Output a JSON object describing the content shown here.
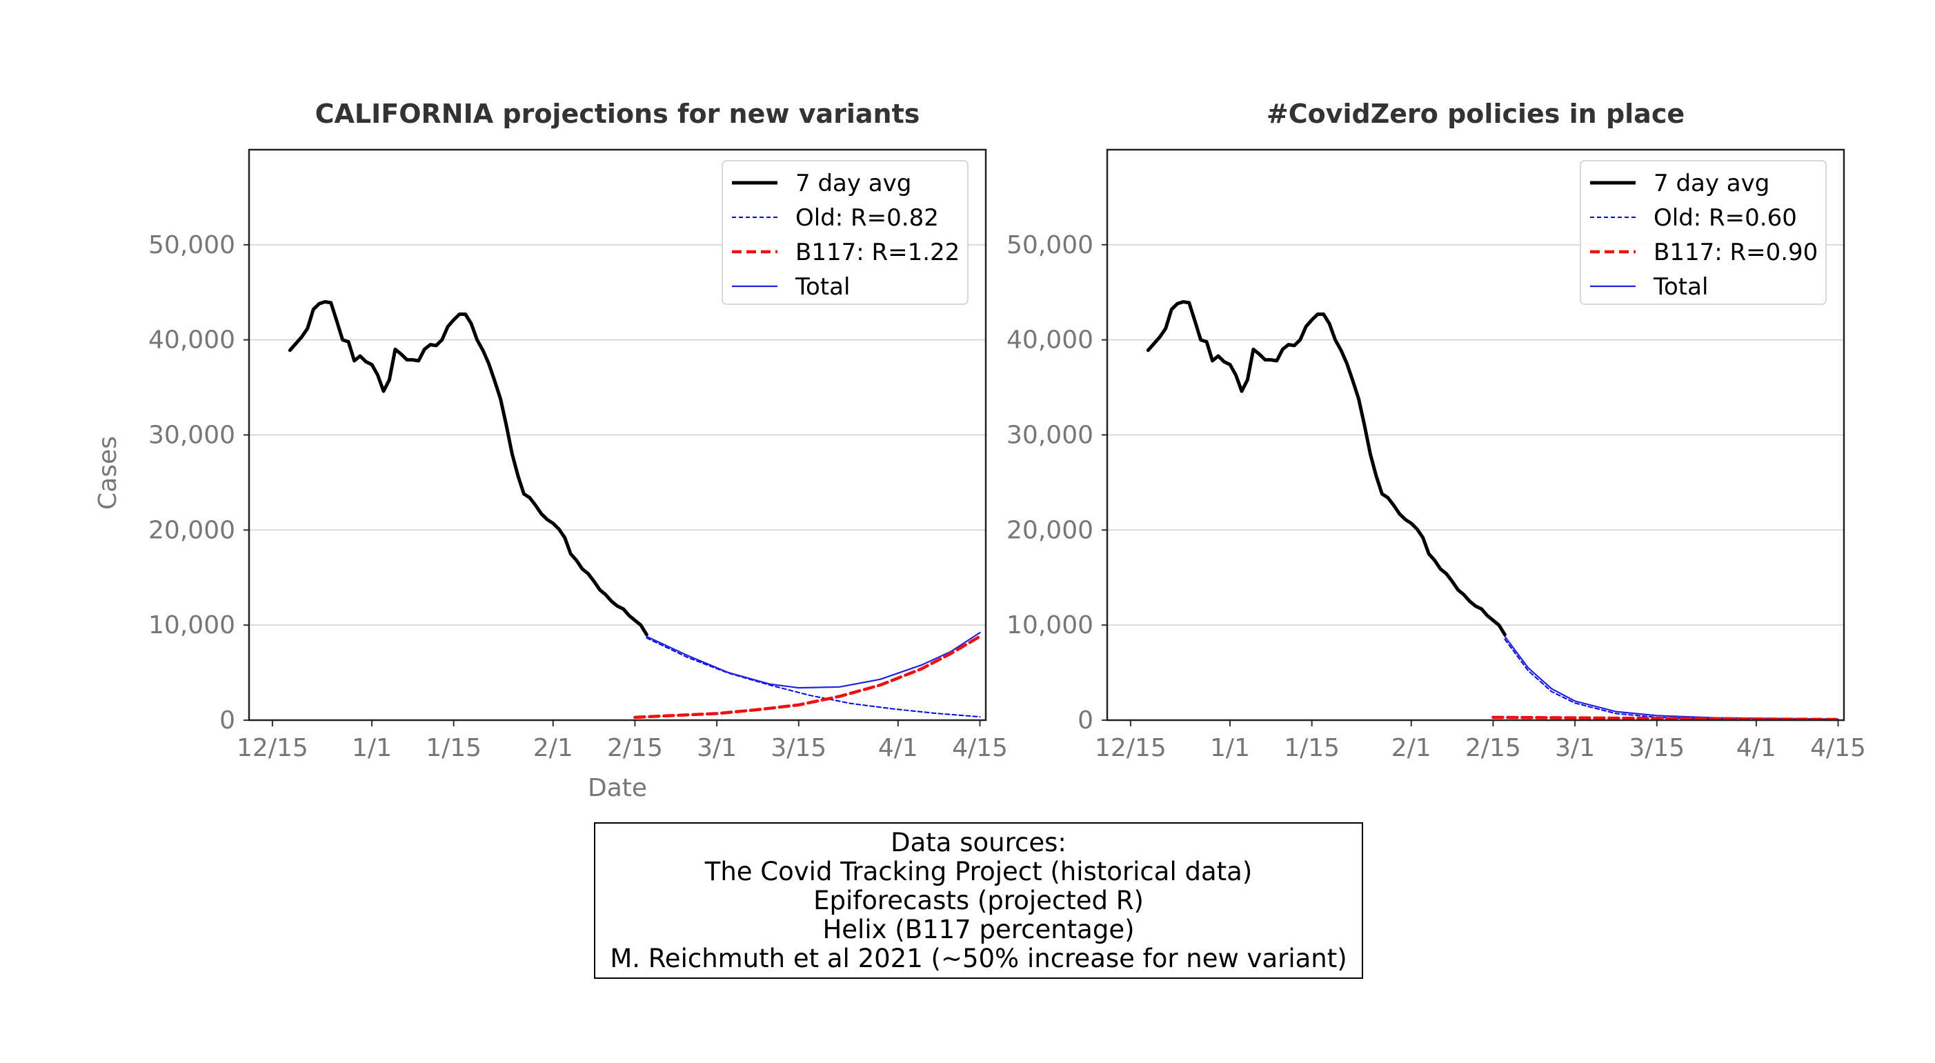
{
  "sources": {
    "lines": [
      "Data sources:",
      "The Covid Tracking Project (historical data)",
      "Epiforecasts (projected R)",
      "Helix (B117 percentage)",
      "M. Reichmuth et al 2021 (~50% increase for new variant)"
    ]
  },
  "chart_data": [
    {
      "type": "line",
      "title": "CALIFORNIA projections for new variants",
      "xlabel": "Date",
      "ylabel": "Cases",
      "x_unit": "date (2020-12 to 2021-04)",
      "xlim": [
        "2020-12-11",
        "2021-04-16"
      ],
      "ylim": [
        0,
        60000
      ],
      "xticks": [
        {
          "date": "2020-12-15",
          "label": "12/15"
        },
        {
          "date": "2021-01-01",
          "label": "1/1"
        },
        {
          "date": "2021-01-15",
          "label": "1/15"
        },
        {
          "date": "2021-02-01",
          "label": "2/1"
        },
        {
          "date": "2021-02-15",
          "label": "2/15"
        },
        {
          "date": "2021-03-01",
          "label": "3/1"
        },
        {
          "date": "2021-03-15",
          "label": "3/15"
        },
        {
          "date": "2021-04-01",
          "label": "4/1"
        },
        {
          "date": "2021-04-15",
          "label": "4/15"
        }
      ],
      "yticks": [
        {
          "value": 0,
          "label": "0"
        },
        {
          "value": 10000,
          "label": "10,000"
        },
        {
          "value": 20000,
          "label": "20,000"
        },
        {
          "value": 30000,
          "label": "30,000"
        },
        {
          "value": 40000,
          "label": "40,000"
        },
        {
          "value": 50000,
          "label": "50,000"
        }
      ],
      "grid": "horizontal",
      "legend_position": "top-right",
      "colors": {
        "avg": "#000000",
        "old": "#0000ee",
        "b117": "#ee1111",
        "total": "#2222dd"
      },
      "series": [
        {
          "name": "7 day avg",
          "style": "solid-thick",
          "color": "#000000",
          "points": [
            [
              "2020-12-18",
              38900
            ],
            [
              "2020-12-19",
              39600
            ],
            [
              "2020-12-20",
              40300
            ],
            [
              "2020-12-21",
              41200
            ],
            [
              "2020-12-22",
              43200
            ],
            [
              "2020-12-23",
              43800
            ],
            [
              "2020-12-24",
              44000
            ],
            [
              "2020-12-25",
              43900
            ],
            [
              "2020-12-26",
              42000
            ],
            [
              "2020-12-27",
              40000
            ],
            [
              "2020-12-28",
              39800
            ],
            [
              "2020-12-29",
              37800
            ],
            [
              "2020-12-30",
              38300
            ],
            [
              "2020-12-31",
              37700
            ],
            [
              "2021-01-01",
              37400
            ],
            [
              "2021-01-02",
              36300
            ],
            [
              "2021-01-03",
              34600
            ],
            [
              "2021-01-04",
              35800
            ],
            [
              "2021-01-05",
              39000
            ],
            [
              "2021-01-06",
              38500
            ],
            [
              "2021-01-07",
              37900
            ],
            [
              "2021-01-08",
              37900
            ],
            [
              "2021-01-09",
              37800
            ],
            [
              "2021-01-10",
              39000
            ],
            [
              "2021-01-11",
              39500
            ],
            [
              "2021-01-12",
              39400
            ],
            [
              "2021-01-13",
              40000
            ],
            [
              "2021-01-14",
              41400
            ],
            [
              "2021-01-15",
              42100
            ],
            [
              "2021-01-16",
              42700
            ],
            [
              "2021-01-17",
              42700
            ],
            [
              "2021-01-18",
              41700
            ],
            [
              "2021-01-19",
              40000
            ],
            [
              "2021-01-20",
              38900
            ],
            [
              "2021-01-21",
              37500
            ],
            [
              "2021-01-22",
              35700
            ],
            [
              "2021-01-23",
              33800
            ],
            [
              "2021-01-24",
              31000
            ],
            [
              "2021-01-25",
              28000
            ],
            [
              "2021-01-26",
              25700
            ],
            [
              "2021-01-27",
              23800
            ],
            [
              "2021-01-28",
              23400
            ],
            [
              "2021-01-29",
              22600
            ],
            [
              "2021-01-30",
              21700
            ],
            [
              "2021-01-31",
              21100
            ],
            [
              "2021-02-01",
              20700
            ],
            [
              "2021-02-02",
              20100
            ],
            [
              "2021-02-03",
              19200
            ],
            [
              "2021-02-04",
              17500
            ],
            [
              "2021-02-05",
              16800
            ],
            [
              "2021-02-06",
              15900
            ],
            [
              "2021-02-07",
              15400
            ],
            [
              "2021-02-08",
              14600
            ],
            [
              "2021-02-09",
              13700
            ],
            [
              "2021-02-10",
              13200
            ],
            [
              "2021-02-11",
              12500
            ],
            [
              "2021-02-12",
              12000
            ],
            [
              "2021-02-13",
              11700
            ],
            [
              "2021-02-14",
              11000
            ],
            [
              "2021-02-15",
              10500
            ],
            [
              "2021-02-16",
              10000
            ],
            [
              "2021-02-17",
              9000
            ]
          ]
        },
        {
          "name": "Old: R=0.82",
          "style": "dotted-thin",
          "color": "#0000ee",
          "points": [
            [
              "2021-02-17",
              8650
            ],
            [
              "2021-02-24",
              6600
            ],
            [
              "2021-03-03",
              4950
            ],
            [
              "2021-03-10",
              3700
            ],
            [
              "2021-03-17",
              2600
            ],
            [
              "2021-03-24",
              1750
            ],
            [
              "2021-03-31",
              1200
            ],
            [
              "2021-04-07",
              750
            ],
            [
              "2021-04-15",
              350
            ]
          ]
        },
        {
          "name": "B117: R=1.22",
          "style": "dashed-thick",
          "color": "#ee1111",
          "points": [
            [
              "2021-02-15",
              300
            ],
            [
              "2021-02-22",
              500
            ],
            [
              "2021-03-01",
              700
            ],
            [
              "2021-03-08",
              1100
            ],
            [
              "2021-03-15",
              1600
            ],
            [
              "2021-03-22",
              2500
            ],
            [
              "2021-03-29",
              3700
            ],
            [
              "2021-04-05",
              5400
            ],
            [
              "2021-04-10",
              7000
            ],
            [
              "2021-04-15",
              8800
            ]
          ]
        },
        {
          "name": "Total",
          "style": "solid-thin",
          "color": "#2222dd",
          "points": [
            [
              "2021-02-17",
              8800
            ],
            [
              "2021-02-24",
              6800
            ],
            [
              "2021-03-03",
              5000
            ],
            [
              "2021-03-10",
              3800
            ],
            [
              "2021-03-15",
              3400
            ],
            [
              "2021-03-22",
              3500
            ],
            [
              "2021-03-29",
              4300
            ],
            [
              "2021-04-05",
              5800
            ],
            [
              "2021-04-10",
              7200
            ],
            [
              "2021-04-15",
              9200
            ]
          ]
        }
      ]
    },
    {
      "type": "line",
      "title": "#CovidZero policies in place",
      "xlabel": "",
      "ylabel": "",
      "x_unit": "date (2020-12 to 2021-04)",
      "xlim": [
        "2020-12-11",
        "2021-04-16"
      ],
      "ylim": [
        0,
        60000
      ],
      "xticks": [
        {
          "date": "2020-12-15",
          "label": "12/15"
        },
        {
          "date": "2021-01-01",
          "label": "1/1"
        },
        {
          "date": "2021-01-15",
          "label": "1/15"
        },
        {
          "date": "2021-02-01",
          "label": "2/1"
        },
        {
          "date": "2021-02-15",
          "label": "2/15"
        },
        {
          "date": "2021-03-01",
          "label": "3/1"
        },
        {
          "date": "2021-03-15",
          "label": "3/15"
        },
        {
          "date": "2021-04-01",
          "label": "4/1"
        },
        {
          "date": "2021-04-15",
          "label": "4/15"
        }
      ],
      "yticks": [
        {
          "value": 0,
          "label": "0"
        },
        {
          "value": 10000,
          "label": "10,000"
        },
        {
          "value": 20000,
          "label": "20,000"
        },
        {
          "value": 30000,
          "label": "30,000"
        },
        {
          "value": 40000,
          "label": "40,000"
        },
        {
          "value": 50000,
          "label": "50,000"
        }
      ],
      "grid": "horizontal",
      "legend_position": "top-right",
      "colors": {
        "avg": "#000000",
        "old": "#0000ee",
        "b117": "#ee1111",
        "total": "#2222dd"
      },
      "series": [
        {
          "name": "7 day avg",
          "style": "solid-thick",
          "color": "#000000",
          "points": [
            [
              "2020-12-18",
              38900
            ],
            [
              "2020-12-19",
              39600
            ],
            [
              "2020-12-20",
              40300
            ],
            [
              "2020-12-21",
              41200
            ],
            [
              "2020-12-22",
              43200
            ],
            [
              "2020-12-23",
              43800
            ],
            [
              "2020-12-24",
              44000
            ],
            [
              "2020-12-25",
              43900
            ],
            [
              "2020-12-26",
              42000
            ],
            [
              "2020-12-27",
              40000
            ],
            [
              "2020-12-28",
              39800
            ],
            [
              "2020-12-29",
              37800
            ],
            [
              "2020-12-30",
              38300
            ],
            [
              "2020-12-31",
              37700
            ],
            [
              "2021-01-01",
              37400
            ],
            [
              "2021-01-02",
              36300
            ],
            [
              "2021-01-03",
              34600
            ],
            [
              "2021-01-04",
              35800
            ],
            [
              "2021-01-05",
              39000
            ],
            [
              "2021-01-06",
              38500
            ],
            [
              "2021-01-07",
              37900
            ],
            [
              "2021-01-08",
              37900
            ],
            [
              "2021-01-09",
              37800
            ],
            [
              "2021-01-10",
              39000
            ],
            [
              "2021-01-11",
              39500
            ],
            [
              "2021-01-12",
              39400
            ],
            [
              "2021-01-13",
              40000
            ],
            [
              "2021-01-14",
              41400
            ],
            [
              "2021-01-15",
              42100
            ],
            [
              "2021-01-16",
              42700
            ],
            [
              "2021-01-17",
              42700
            ],
            [
              "2021-01-18",
              41700
            ],
            [
              "2021-01-19",
              40000
            ],
            [
              "2021-01-20",
              38900
            ],
            [
              "2021-01-21",
              37500
            ],
            [
              "2021-01-22",
              35700
            ],
            [
              "2021-01-23",
              33800
            ],
            [
              "2021-01-24",
              31000
            ],
            [
              "2021-01-25",
              28000
            ],
            [
              "2021-01-26",
              25700
            ],
            [
              "2021-01-27",
              23800
            ],
            [
              "2021-01-28",
              23400
            ],
            [
              "2021-01-29",
              22600
            ],
            [
              "2021-01-30",
              21700
            ],
            [
              "2021-01-31",
              21100
            ],
            [
              "2021-02-01",
              20700
            ],
            [
              "2021-02-02",
              20100
            ],
            [
              "2021-02-03",
              19200
            ],
            [
              "2021-02-04",
              17500
            ],
            [
              "2021-02-05",
              16800
            ],
            [
              "2021-02-06",
              15900
            ],
            [
              "2021-02-07",
              15400
            ],
            [
              "2021-02-08",
              14600
            ],
            [
              "2021-02-09",
              13700
            ],
            [
              "2021-02-10",
              13200
            ],
            [
              "2021-02-11",
              12500
            ],
            [
              "2021-02-12",
              12000
            ],
            [
              "2021-02-13",
              11700
            ],
            [
              "2021-02-14",
              11000
            ],
            [
              "2021-02-15",
              10500
            ],
            [
              "2021-02-16",
              10000
            ],
            [
              "2021-02-17",
              9000
            ]
          ]
        },
        {
          "name": "Old: R=0.60",
          "style": "dotted-thin",
          "color": "#0000ee",
          "points": [
            [
              "2021-02-17",
              8500
            ],
            [
              "2021-02-21",
              5200
            ],
            [
              "2021-02-25",
              3000
            ],
            [
              "2021-03-01",
              1800
            ],
            [
              "2021-03-08",
              700
            ],
            [
              "2021-03-15",
              300
            ],
            [
              "2021-03-25",
              100
            ],
            [
              "2021-04-15",
              20
            ]
          ]
        },
        {
          "name": "B117: R=0.90",
          "style": "dashed-thick",
          "color": "#ee1111",
          "points": [
            [
              "2021-02-15",
              300
            ],
            [
              "2021-03-01",
              250
            ],
            [
              "2021-03-15",
              180
            ],
            [
              "2021-04-01",
              120
            ],
            [
              "2021-04-15",
              80
            ]
          ]
        },
        {
          "name": "Total",
          "style": "solid-thin",
          "color": "#2222dd",
          "points": [
            [
              "2021-02-17",
              8800
            ],
            [
              "2021-02-21",
              5500
            ],
            [
              "2021-02-25",
              3300
            ],
            [
              "2021-03-01",
              2000
            ],
            [
              "2021-03-08",
              900
            ],
            [
              "2021-03-15",
              480
            ],
            [
              "2021-03-25",
              250
            ],
            [
              "2021-04-15",
              100
            ]
          ]
        }
      ]
    }
  ]
}
